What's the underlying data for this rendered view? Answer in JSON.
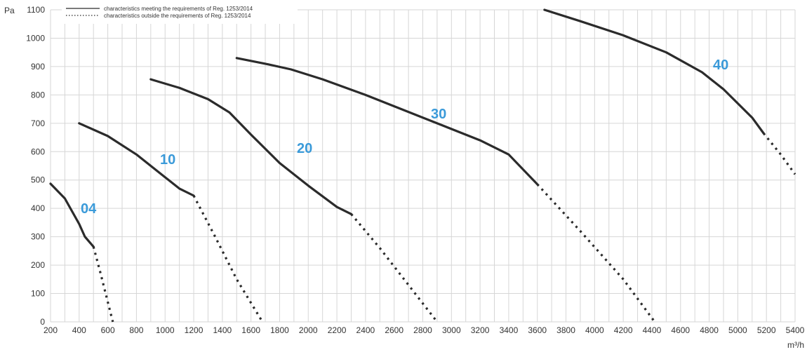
{
  "chart_data": {
    "type": "line",
    "ylabel": "Pa",
    "xlabel": "m³/h",
    "xlim": [
      200,
      5400
    ],
    "ylim": [
      0,
      1100
    ],
    "xticks": [
      "200",
      "400",
      "600",
      "800",
      "1000",
      "1200",
      "1400",
      "1600",
      "1800",
      "2000",
      "2200",
      "2400",
      "2600",
      "2800",
      "3000",
      "3200",
      "3400",
      "3600",
      "3800",
      "4000",
      "4200",
      "4400",
      "4600",
      "4800",
      "5000",
      "5200",
      "5400"
    ],
    "yticks": [
      "0",
      "100",
      "200",
      "300",
      "400",
      "500",
      "600",
      "700",
      "800",
      "900",
      "1000",
      "1100"
    ],
    "grid": true,
    "legend_position": "top-left",
    "legend": [
      {
        "style": "solid",
        "label": "characteristics meeting the requirements of Reg. 1253/2014"
      },
      {
        "style": "dotted",
        "label": "characteristics outside the requirements of Reg. 1253/2014"
      }
    ],
    "line_color": "#2b2b2b",
    "label_color": "#3a9ad9",
    "series": [
      {
        "name": "04",
        "solid": [
          [
            200,
            487
          ],
          [
            300,
            435
          ],
          [
            400,
            345
          ],
          [
            440,
            300
          ],
          [
            500,
            265
          ]
        ],
        "dotted": [
          [
            500,
            265
          ],
          [
            550,
            170
          ],
          [
            600,
            70
          ],
          [
            635,
            0
          ]
        ]
      },
      {
        "name": "10",
        "solid": [
          [
            400,
            700
          ],
          [
            600,
            655
          ],
          [
            800,
            590
          ],
          [
            1000,
            510
          ],
          [
            1100,
            470
          ],
          [
            1200,
            445
          ]
        ],
        "dotted": [
          [
            1200,
            445
          ],
          [
            1350,
            300
          ],
          [
            1500,
            150
          ],
          [
            1680,
            0
          ]
        ]
      },
      {
        "name": "20",
        "solid": [
          [
            900,
            855
          ],
          [
            1100,
            825
          ],
          [
            1300,
            785
          ],
          [
            1450,
            738
          ],
          [
            1600,
            660
          ],
          [
            1800,
            560
          ],
          [
            2000,
            480
          ],
          [
            2200,
            405
          ],
          [
            2300,
            380
          ]
        ],
        "dotted": [
          [
            2300,
            380
          ],
          [
            2500,
            260
          ],
          [
            2700,
            130
          ],
          [
            2900,
            0
          ]
        ]
      },
      {
        "name": "30",
        "solid": [
          [
            1500,
            930
          ],
          [
            1700,
            910
          ],
          [
            1880,
            890
          ],
          [
            2100,
            855
          ],
          [
            2400,
            800
          ],
          [
            2800,
            720
          ],
          [
            3200,
            640
          ],
          [
            3400,
            590
          ],
          [
            3600,
            485
          ]
        ],
        "dotted": [
          [
            3600,
            485
          ],
          [
            3900,
            320
          ],
          [
            4200,
            150
          ],
          [
            4420,
            0
          ]
        ]
      },
      {
        "name": "40",
        "solid": [
          [
            3650,
            1100
          ],
          [
            3900,
            1060
          ],
          [
            4200,
            1010
          ],
          [
            4500,
            950
          ],
          [
            4750,
            880
          ],
          [
            4900,
            820
          ],
          [
            5000,
            770
          ],
          [
            5100,
            720
          ],
          [
            5180,
            665
          ]
        ],
        "dotted": [
          [
            5180,
            665
          ],
          [
            5300,
            590
          ],
          [
            5400,
            520
          ]
        ]
      }
    ]
  }
}
